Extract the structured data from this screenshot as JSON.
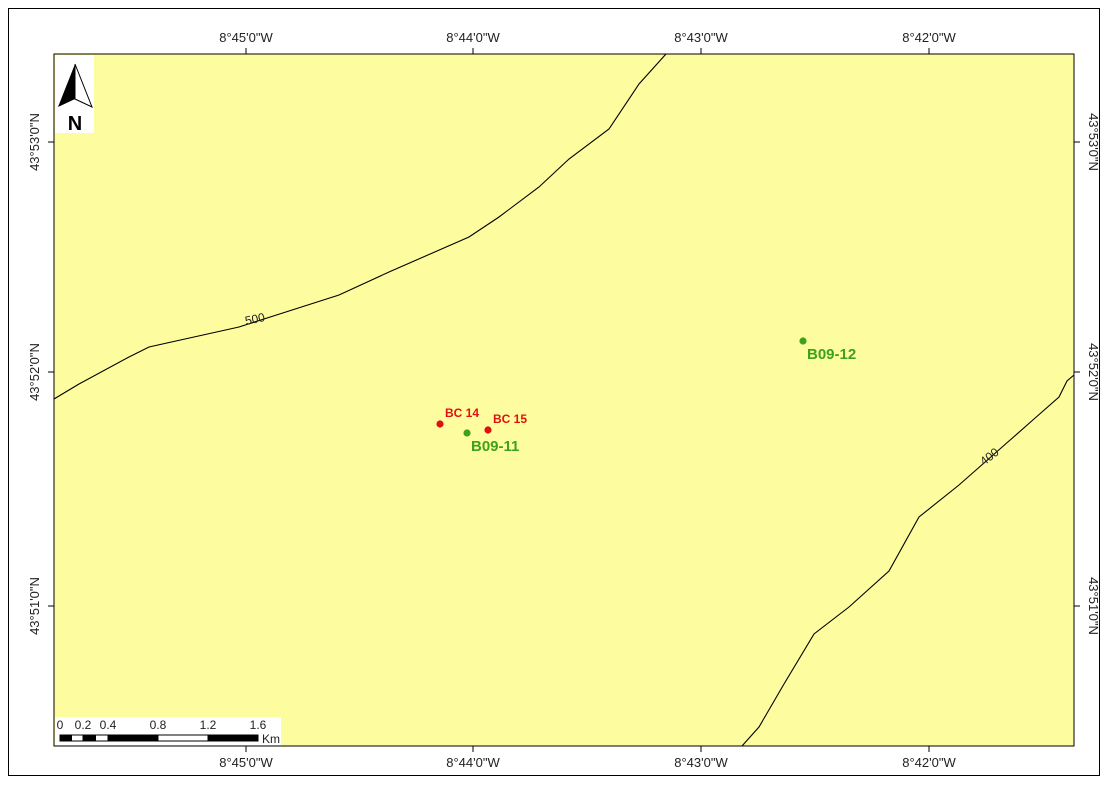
{
  "colors": {
    "land": "#fdfd9f",
    "contour": "#000000",
    "red_station": "#e01010",
    "green_station": "#3da21a"
  },
  "north_arrow": {
    "label": "N",
    "icon": "north-arrow-icon"
  },
  "graticule": {
    "top": [
      "8°45'0\"W",
      "8°44'0\"W",
      "8°43'0\"W",
      "8°42'0\"W"
    ],
    "bottom": [
      "8°45'0\"W",
      "8°44'0\"W",
      "8°43'0\"W",
      "8°42'0\"W"
    ],
    "left": [
      "43°53'0\"N",
      "43°52'0\"N",
      "43°51'0\"N"
    ],
    "right": [
      "43°53'0\"N",
      "43°52'0\"N",
      "43°51'0\"N"
    ]
  },
  "contours": [
    {
      "label": "500"
    },
    {
      "label": "400"
    }
  ],
  "stations": [
    {
      "label": "BC 14",
      "color": "red"
    },
    {
      "label": "BC 15",
      "color": "red"
    },
    {
      "label": "B09-11",
      "color": "green"
    },
    {
      "label": "B09-12",
      "color": "green"
    }
  ],
  "scale_bar": {
    "ticks": [
      "0",
      "0.2",
      "0.4",
      "0.8",
      "1.2",
      "1.6"
    ],
    "unit": "Km"
  }
}
